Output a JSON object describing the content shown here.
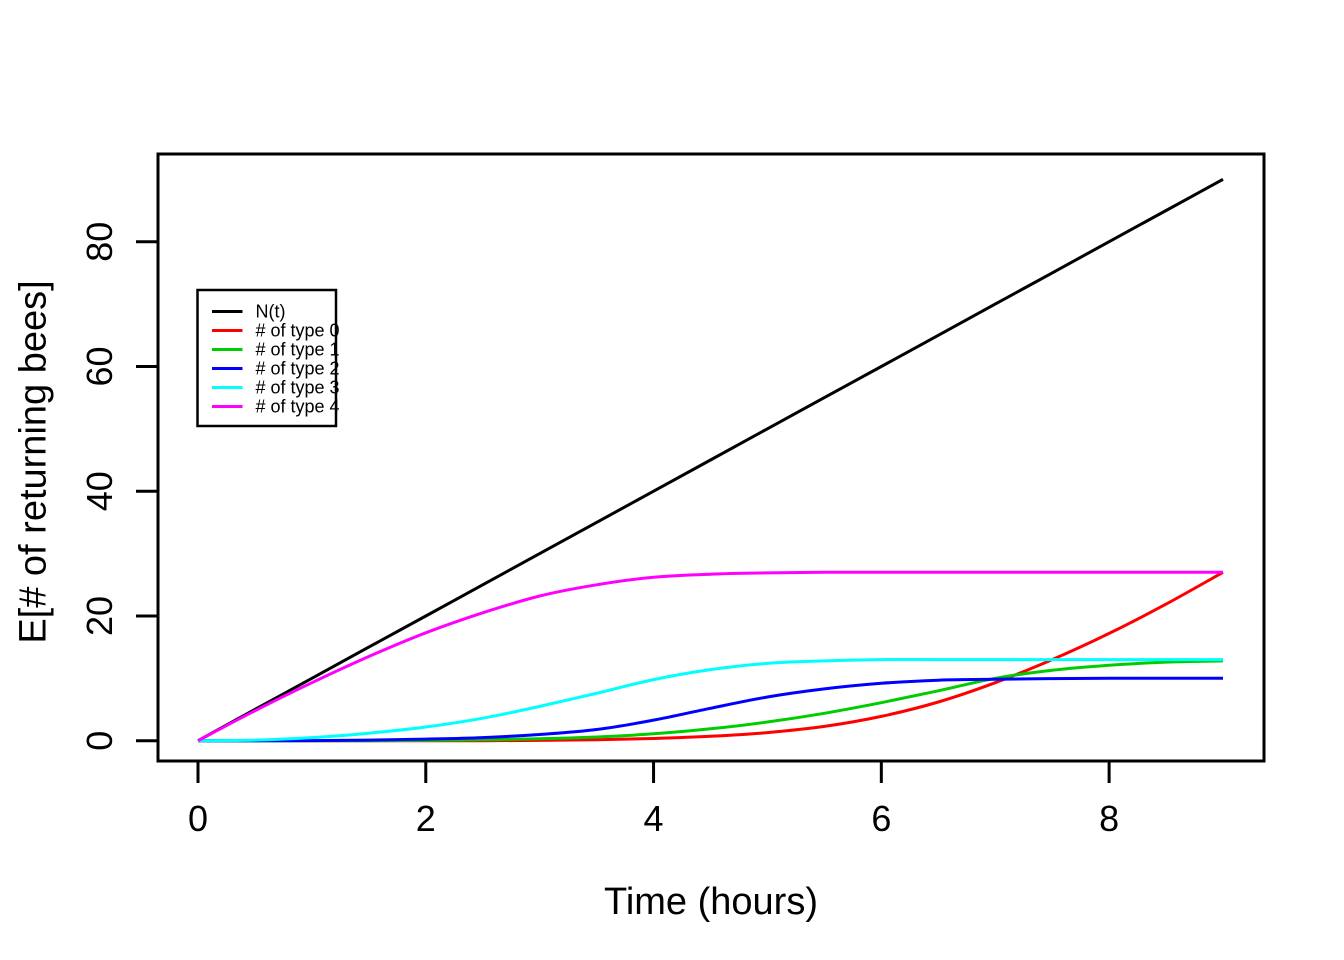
{
  "figure": {
    "background": "#ffffff",
    "frame_color": "#000000"
  },
  "chart_data": {
    "type": "line",
    "title": "",
    "xlabel": "Time (hours)",
    "ylabel": "E[# of returning bees]",
    "xlim": [
      0,
      9
    ],
    "ylim": [
      0,
      90
    ],
    "x_ticks": [
      0,
      2,
      4,
      6,
      8
    ],
    "y_ticks": [
      0,
      20,
      40,
      60,
      80
    ],
    "grid": false,
    "legend_position": "upper-left-inset",
    "x": [
      0,
      0.5,
      1,
      1.5,
      2,
      2.5,
      3,
      3.5,
      4,
      4.5,
      5,
      5.5,
      6,
      6.5,
      7,
      7.5,
      8,
      8.5,
      9
    ],
    "series": [
      {
        "name": "N(t)",
        "color": "#000000",
        "values": [
          0,
          5,
          10,
          15,
          20,
          25,
          30,
          35,
          40,
          45,
          50,
          55,
          60,
          65,
          70,
          75,
          80,
          85,
          90
        ]
      },
      {
        "name": "# of type 0",
        "color": "#FF0000",
        "values": [
          0,
          0,
          0,
          0,
          0,
          0,
          0.05,
          0.15,
          0.35,
          0.7,
          1.3,
          2.3,
          3.9,
          6.2,
          9.3,
          13,
          17.2,
          21.9,
          27
        ]
      },
      {
        "name": "# of type 1",
        "color": "#00CD00",
        "values": [
          0,
          0,
          0,
          0,
          0.05,
          0.15,
          0.3,
          0.6,
          1.1,
          1.9,
          3,
          4.4,
          6.1,
          8,
          10,
          11.3,
          12.1,
          12.6,
          12.8
        ]
      },
      {
        "name": "# of type 2",
        "color": "#0000FF",
        "values": [
          0,
          0,
          0.02,
          0.1,
          0.25,
          0.5,
          1,
          1.8,
          3.3,
          5.2,
          7,
          8.3,
          9.2,
          9.7,
          9.85,
          9.95,
          10,
          10,
          10
        ]
      },
      {
        "name": "# of type 3",
        "color": "#00FFFF",
        "values": [
          0,
          0.1,
          0.5,
          1.2,
          2.2,
          3.6,
          5.5,
          7.6,
          9.8,
          11.4,
          12.4,
          12.8,
          13,
          13,
          13,
          13,
          13,
          13,
          13
        ]
      },
      {
        "name": "# of type 4",
        "color": "#FF00FF",
        "values": [
          0,
          4.8,
          9.3,
          13.5,
          17.3,
          20.5,
          23.2,
          25,
          26.2,
          26.7,
          26.9,
          27,
          27,
          27,
          27,
          27,
          27,
          27,
          27
        ]
      }
    ],
    "legend_entries": [
      "N(t)",
      "# of type 0",
      "# of type 1",
      "# of type 2",
      "# of type 3",
      "# of type 4"
    ]
  }
}
